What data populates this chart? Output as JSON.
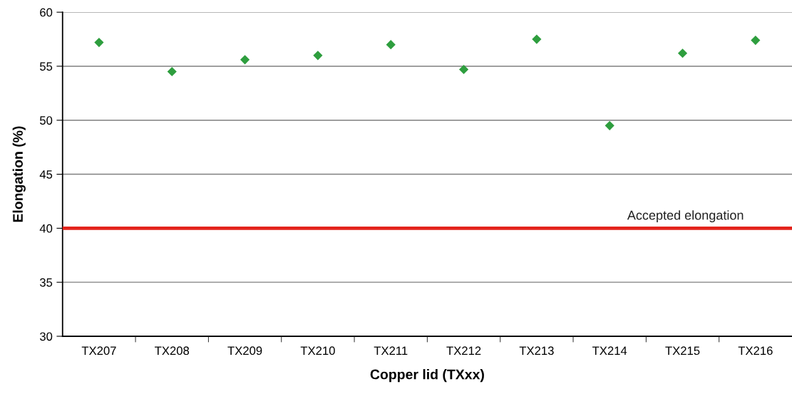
{
  "chart_data": {
    "type": "scatter",
    "xlabel": "Copper lid (TXxx)",
    "ylabel": "Elongation (%)",
    "categories": [
      "TX207",
      "TX208",
      "TX209",
      "TX210",
      "TX211",
      "TX212",
      "TX213",
      "TX214",
      "TX215",
      "TX216"
    ],
    "series": [
      {
        "color": "#2e9e3e",
        "values": [
          57.2,
          54.5,
          55.6,
          56.0,
          57.0,
          54.7,
          57.5,
          49.5,
          56.2,
          57.4
        ]
      }
    ],
    "marker": "diamond",
    "ylim": [
      30,
      60
    ],
    "yticks": [
      30,
      35,
      40,
      45,
      50,
      55,
      60
    ],
    "grid": "y",
    "ref_lines": [
      {
        "axis": "y",
        "value": 40,
        "label": "Accepted elongation",
        "color": "#e3231b"
      }
    ]
  }
}
